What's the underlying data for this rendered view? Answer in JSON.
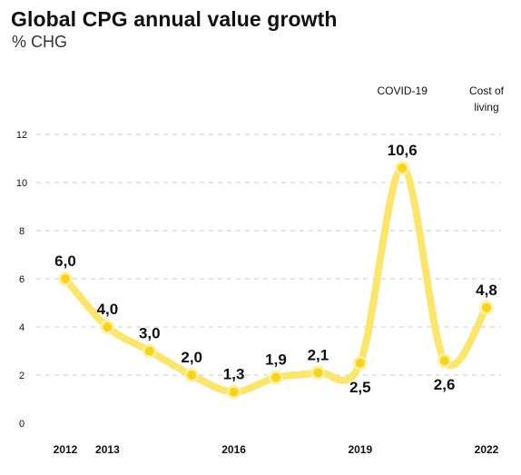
{
  "chart_data": {
    "type": "line",
    "title": "Global CPG annual value growth",
    "subtitle": "% CHG",
    "x": [
      2012,
      2013,
      2014,
      2015,
      2016,
      2017,
      2018,
      2019,
      2020,
      2021,
      2022
    ],
    "values": [
      6.0,
      4.0,
      3.0,
      2.0,
      1.3,
      1.9,
      2.1,
      2.5,
      10.6,
      2.6,
      4.8
    ],
    "data_labels": [
      "6,0",
      "4,0",
      "3,0",
      "2,0",
      "1,3",
      "1,9",
      "2,1",
      "2,5",
      "10,6",
      "2,6",
      "4,8"
    ],
    "x_tick_labels": [
      {
        "x": 2012,
        "label": "2012"
      },
      {
        "x": 2013,
        "label": "2013"
      },
      {
        "x": 2016,
        "label": "2016"
      },
      {
        "x": 2019,
        "label": "2019"
      },
      {
        "x": 2022,
        "label": "2022"
      }
    ],
    "y_ticks": [
      0,
      2,
      4,
      6,
      8,
      10,
      12
    ],
    "ylim": [
      0,
      12
    ],
    "grid": "horizontal dashed",
    "annotations": [
      {
        "x": 2020,
        "lines": [
          "COVID-19"
        ]
      },
      {
        "x": 2022,
        "lines": [
          "Cost of",
          "living"
        ]
      }
    ],
    "colors": {
      "line": "#fbe56a",
      "marker": "#f7d417",
      "grid": "#c8c8c8"
    }
  }
}
